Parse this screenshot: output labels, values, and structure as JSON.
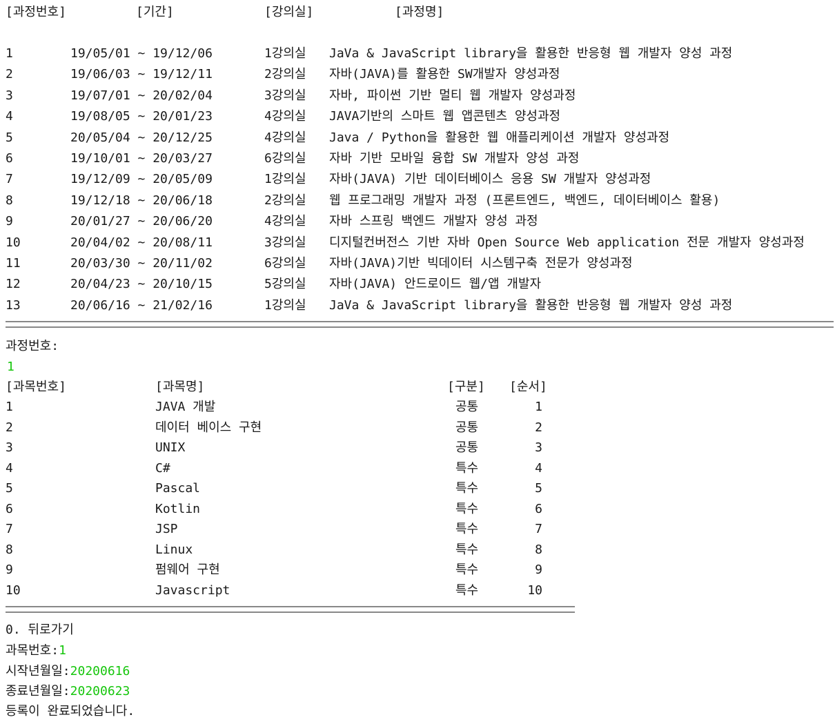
{
  "courses": {
    "header": [
      "[과정번호]",
      "[기간]",
      "[강의실]",
      "[과정명]"
    ],
    "rows": [
      [
        "1",
        "19/05/01 ~ 19/12/06",
        "1강의실",
        "JaVa & JavaScript library을 활용한 반응형 웹 개발자 양성 과정"
      ],
      [
        "2",
        "19/06/03 ~ 19/12/11",
        "2강의실",
        "자바(JAVA)를 활용한 SW개발자 양성과정"
      ],
      [
        "3",
        "19/07/01 ~ 20/02/04",
        "3강의실",
        "자바, 파이썬 기반 멀티 웹 개발자 양성과정"
      ],
      [
        "4",
        "19/08/05 ~ 20/01/23",
        "4강의실",
        "JAVA기반의 스마트 웹 앱콘텐츠 양성과정"
      ],
      [
        "5",
        "20/05/04 ~ 20/12/25",
        "4강의실",
        "Java / Python을 활용한 웹 애플리케이션 개발자 양성과정"
      ],
      [
        "6",
        "19/10/01 ~ 20/03/27",
        "6강의실",
        "자바 기반 모바일 융합 SW 개발자 양성 과정"
      ],
      [
        "7",
        "19/12/09 ~ 20/05/09",
        "1강의실",
        "자바(JAVA) 기반 데이터베이스 응용 SW 개발자 양성과정"
      ],
      [
        "8",
        "19/12/18 ~ 20/06/18",
        "2강의실",
        "웹 프로그래밍 개발자 과정 (프론트엔드, 백엔드, 데이터베이스 활용)"
      ],
      [
        "9",
        "20/01/27 ~ 20/06/20",
        "4강의실",
        "자바 스프링 백엔드 개발자 양성 과정"
      ],
      [
        "10",
        "20/04/02 ~ 20/08/11",
        "3강의실",
        "디지털컨버전스 기반 자바 Open Source Web application 전문 개발자 양성과정"
      ],
      [
        "11",
        "20/03/30 ~ 20/11/02",
        "6강의실",
        "자바(JAVA)기반 빅데이터 시스템구축 전문가 양성과정"
      ],
      [
        "12",
        "20/04/23 ~ 20/10/15",
        "5강의실",
        "자바(JAVA) 안드로이드 웹/앱 개발자"
      ],
      [
        "13",
        "20/06/16 ~ 21/02/16",
        "1강의실",
        "JaVa & JavaScript library을 활용한 반응형 웹 개발자 양성 과정"
      ]
    ]
  },
  "course_prompt": {
    "label": "과정번호:",
    "input": "1"
  },
  "subjects": {
    "header": [
      "[과목번호]",
      "[과목명]",
      "[구분]",
      "[순서]"
    ],
    "rows": [
      [
        "1",
        "JAVA 개발",
        "공통",
        "1"
      ],
      [
        "2",
        "데이터 베이스 구현",
        "공통",
        "2"
      ],
      [
        "3",
        "UNIX",
        "공통",
        "3"
      ],
      [
        "4",
        "C#",
        "특수",
        "4"
      ],
      [
        "5",
        "Pascal",
        "특수",
        "5"
      ],
      [
        "6",
        "Kotlin",
        "특수",
        "6"
      ],
      [
        "7",
        "JSP",
        "특수",
        "7"
      ],
      [
        "8",
        "Linux",
        "특수",
        "8"
      ],
      [
        "9",
        "펌웨어 구현",
        "특수",
        "9"
      ],
      [
        "10",
        "Javascript",
        "특수",
        "10"
      ]
    ]
  },
  "menu": "0. 뒤로가기",
  "inputs": [
    {
      "label": "과목번호: ",
      "value": "1"
    },
    {
      "label": "시작년월일: ",
      "value": "20200616"
    },
    {
      "label": "종료년월일: ",
      "value": "20200623"
    }
  ],
  "message": "등록이 완료되었습니다."
}
